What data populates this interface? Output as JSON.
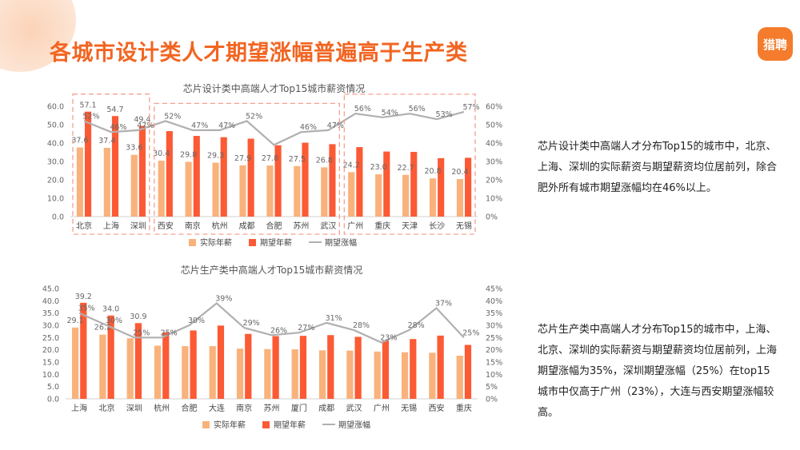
{
  "header": {
    "title": "各城市设计类人才期望涨幅普遍高于生产类",
    "logo_text": "猎聘"
  },
  "legend": {
    "actual": "实际年薪",
    "expected": "期望年薪",
    "growth": "期望涨幅"
  },
  "colors": {
    "actual": "#f9b27c",
    "expected": "#fb5a35",
    "growth": "#b0b0b0",
    "highlight": "#f5a08e",
    "title": "#f26522"
  },
  "chart_data": [
    {
      "type": "bar",
      "title": "芯片设计类中高端人才Top15城市薪资情况",
      "categories": [
        "北京",
        "上海",
        "深圳",
        "西安",
        "南京",
        "杭州",
        "成都",
        "合肥",
        "苏州",
        "武汉",
        "广州",
        "重庆",
        "天津",
        "长沙",
        "无锡"
      ],
      "series": [
        {
          "name": "实际年薪",
          "values": [
            37.6,
            37.4,
            33.6,
            30.4,
            29.8,
            29.3,
            27.9,
            27.8,
            27.5,
            26.8,
            24.2,
            23.0,
            22.7,
            20.8,
            20.4
          ]
        },
        {
          "name": "期望年薪",
          "values": [
            57.1,
            54.7,
            49.4,
            46.5,
            43.9,
            43.2,
            42.4,
            38.8,
            40.2,
            39.4,
            37.8,
            35.4,
            35.2,
            31.8,
            32.0
          ]
        },
        {
          "name": "期望涨幅",
          "axis": "right",
          "values": [
            52,
            46,
            47,
            52,
            47,
            47,
            52,
            39,
            46,
            47,
            56,
            54,
            56,
            53,
            57
          ]
        }
      ],
      "labels": {
        "actual": [
          "37.6",
          "37.4",
          "33.6",
          "30.4",
          "29.8",
          "29.3",
          "27.9",
          "27.8",
          "27.5",
          "26.8",
          "24.2",
          "23.0",
          "22.7",
          "20.8",
          "20.4"
        ],
        "expected": [
          "57.1",
          "54.7",
          "49.4",
          "",
          "",
          "",
          "",
          "",
          "",
          "",
          "",
          "",
          "",
          "",
          ""
        ],
        "growth": [
          "52%",
          "46%",
          "47%",
          "52%",
          "47%",
          "47%",
          "52%",
          "",
          "46%",
          "47%",
          "56%",
          "54%",
          "56%",
          "53%",
          "57%"
        ]
      },
      "y_left": {
        "min": 0,
        "max": 60,
        "ticks": [
          "0.0",
          "10.0",
          "20.0",
          "30.0",
          "40.0",
          "50.0",
          "60.0"
        ]
      },
      "y_right": {
        "min": 0,
        "max": 60,
        "ticks": [
          "0%",
          "10%",
          "20%",
          "30%",
          "40%",
          "50%",
          "60%"
        ]
      },
      "groups": [
        [
          0,
          2
        ],
        [
          3,
          9
        ],
        [
          10,
          14
        ]
      ]
    },
    {
      "type": "bar",
      "title": "芯片生产类中高端人才Top15城市薪资情况",
      "categories": [
        "上海",
        "北京",
        "深圳",
        "杭州",
        "合肥",
        "大连",
        "南京",
        "苏州",
        "厦门",
        "成都",
        "武汉",
        "广州",
        "无锡",
        "西安",
        "重庆"
      ],
      "series": [
        {
          "name": "实际年薪",
          "values": [
            29.1,
            26.2,
            24.7,
            21.7,
            21.5,
            21.5,
            20.5,
            20.3,
            20.2,
            19.8,
            19.7,
            19.3,
            19.0,
            18.8,
            17.6
          ]
        },
        {
          "name": "期望年薪",
          "values": [
            39.2,
            34.0,
            30.9,
            27.1,
            27.9,
            29.9,
            26.5,
            25.6,
            25.7,
            26.0,
            25.3,
            23.8,
            24.4,
            25.8,
            22.0
          ]
        },
        {
          "name": "期望涨幅",
          "axis": "right",
          "values": [
            35,
            30,
            25,
            25,
            30,
            39,
            29,
            26,
            27,
            31,
            28,
            23,
            28,
            37,
            25
          ]
        }
      ],
      "labels": {
        "actual": [
          "29.1",
          "26.2",
          "",
          "",
          "",
          "",
          "",
          "",
          "",
          "",
          "",
          "",
          "",
          "",
          ""
        ],
        "expected": [
          "39.2",
          "34.0",
          "30.9",
          "",
          "",
          "",
          "",
          "",
          "",
          "",
          "",
          "",
          "",
          "",
          ""
        ],
        "growth": [
          "35%",
          "30%",
          "25%",
          "25%",
          "30%",
          "39%",
          "29%",
          "26%",
          "27%",
          "31%",
          "28%",
          "23%",
          "28%",
          "37%",
          "25%"
        ]
      },
      "y_left": {
        "min": 0,
        "max": 45,
        "ticks": [
          "0.0",
          "5.0",
          "10.0",
          "15.0",
          "20.0",
          "25.0",
          "30.0",
          "35.0",
          "40.0",
          "45.0"
        ]
      },
      "y_right": {
        "min": 0,
        "max": 45,
        "ticks": [
          "0%",
          "5%",
          "10%",
          "15%",
          "20%",
          "25%",
          "30%",
          "35%",
          "40%",
          "45%"
        ]
      }
    }
  ],
  "descriptions": [
    "芯片设计类中高端人才分布Top15的城市中，北京、上海、深圳的实际薪资与期望薪资均位居前列，除合肥外所有城市期望涨幅均在46%以上。",
    "芯片生产类中高端人才分布Top15的城市中，上海、北京、深圳的实际薪资与期望薪资均位居前列，上海期望涨幅为35%，深圳期望涨幅（25%）在top15城市中仅高于广州（23%），大连与西安期望涨幅较高。"
  ]
}
